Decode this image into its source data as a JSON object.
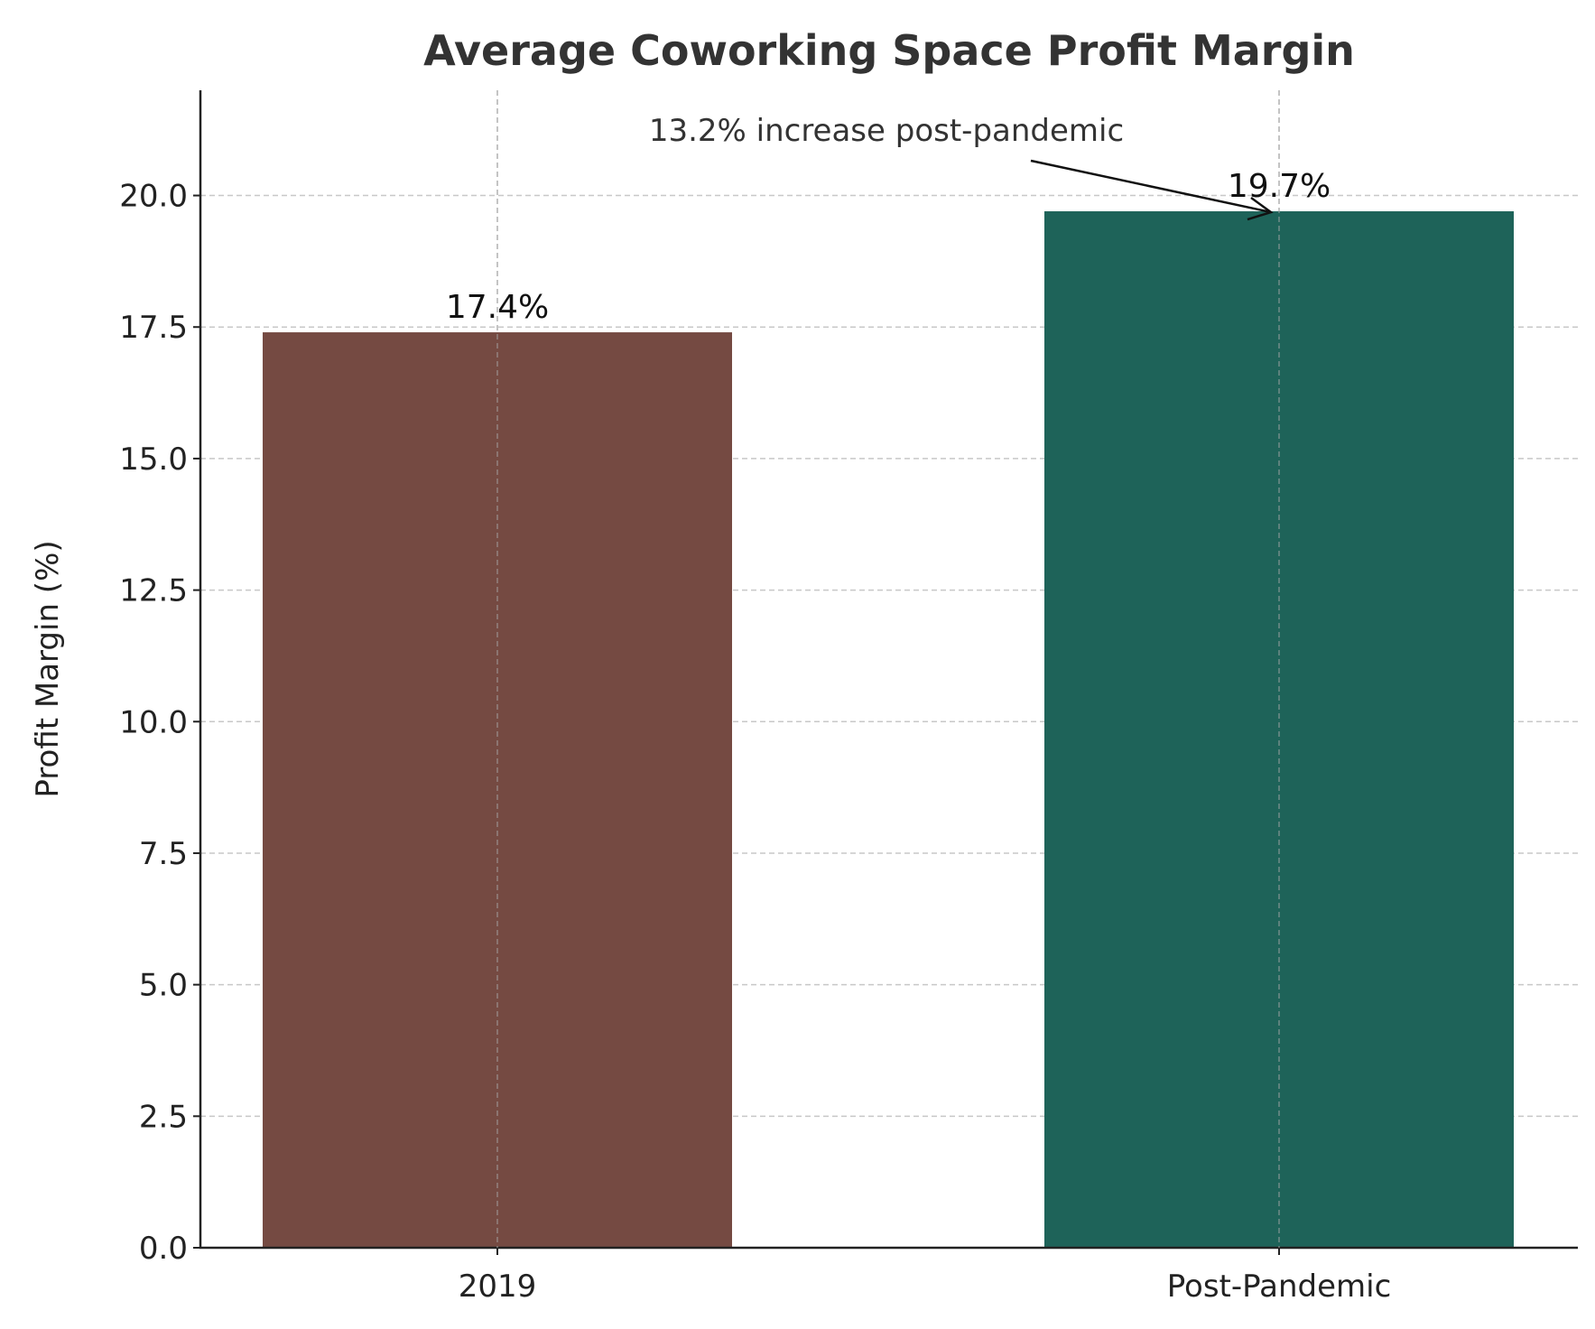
{
  "chart_data": {
    "type": "bar",
    "title": "Average Coworking Space Profit Margin",
    "xlabel": "",
    "ylabel": "Profit Margin (%)",
    "categories": [
      "2019",
      "Post-Pandemic"
    ],
    "values": [
      17.4,
      19.7
    ],
    "data_labels": [
      "17.4%",
      "19.7%"
    ],
    "colors": [
      "#754a42",
      "#1e6359"
    ],
    "ylim": [
      0,
      22
    ],
    "yticks": [
      0,
      2.5,
      5,
      7.5,
      10,
      12.5,
      15,
      17.5,
      20
    ],
    "ytick_labels": [
      "0.0",
      "2.5",
      "5.0",
      "7.5",
      "10.0",
      "12.5",
      "15.0",
      "17.5",
      "20.0"
    ],
    "grid": true,
    "annotation": {
      "text": "13.2% increase post-pandemic",
      "target_category": "Post-Pandemic",
      "target_value": 19.7
    }
  }
}
